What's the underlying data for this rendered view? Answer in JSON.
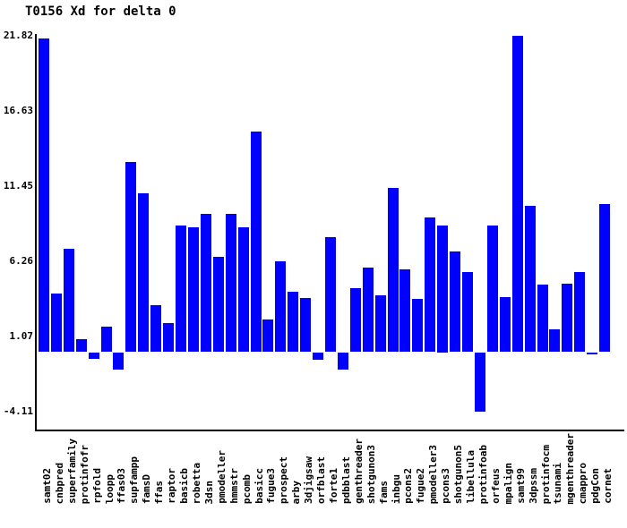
{
  "title": "T0156 Xd for delta 0",
  "chart_data": {
    "type": "bar",
    "title": "T0156 Xd for delta 0",
    "xlabel": "",
    "ylabel": "",
    "grid": false,
    "legend": false,
    "bar_color": "#0000ff",
    "axis_color": "#000000",
    "background_color": "#ffffff",
    "ylim": [
      -5.4,
      22.2
    ],
    "yticks": [
      21.82,
      16.63,
      11.45,
      6.26,
      1.07,
      -4.11
    ],
    "ytick_labels": [
      "21.82",
      "16.63",
      "11.45",
      "6.26",
      "1.07",
      "-4.11"
    ],
    "categories": [
      "samt02",
      "cnbpred",
      "superfamily",
      "protinfofr",
      "rpfold",
      "loopp",
      "ffas03",
      "supfampp",
      "famsD",
      "ffas",
      "raptor",
      "basicb",
      "robetta",
      "3dsn",
      "pmodeller",
      "hmmstr",
      "pcomb",
      "basicc",
      "fugue3",
      "prospect",
      "arby",
      "3djigsaw",
      "orfblast",
      "forte1",
      "pdbblast",
      "genthreader",
      "shotgunon3",
      "fams",
      "inbgu",
      "pcons2",
      "fugue2",
      "pmodeller3",
      "pcons3",
      "shotgunon5",
      "libellula",
      "protinfoab",
      "orfeus",
      "mpalign",
      "samt99",
      "3dpssm",
      "protinfocm",
      "tsunami",
      "mgenthreader",
      "cmappro",
      "pdgCon",
      "cornet"
    ],
    "values": [
      21.65,
      4.02,
      7.15,
      0.88,
      -0.46,
      1.78,
      -1.22,
      13.14,
      10.96,
      3.26,
      2.02,
      8.73,
      8.59,
      9.54,
      6.59,
      9.54,
      8.61,
      15.2,
      2.27,
      6.27,
      4.15,
      3.72,
      -0.51,
      7.95,
      -1.22,
      4.41,
      5.83,
      3.9,
      11.35,
      5.73,
      3.67,
      9.27,
      8.75,
      6.93,
      5.54,
      -4.11,
      8.71,
      3.81,
      21.82,
      10.07,
      4.68,
      1.57,
      4.7,
      5.54,
      -0.14,
      10.23
    ]
  }
}
